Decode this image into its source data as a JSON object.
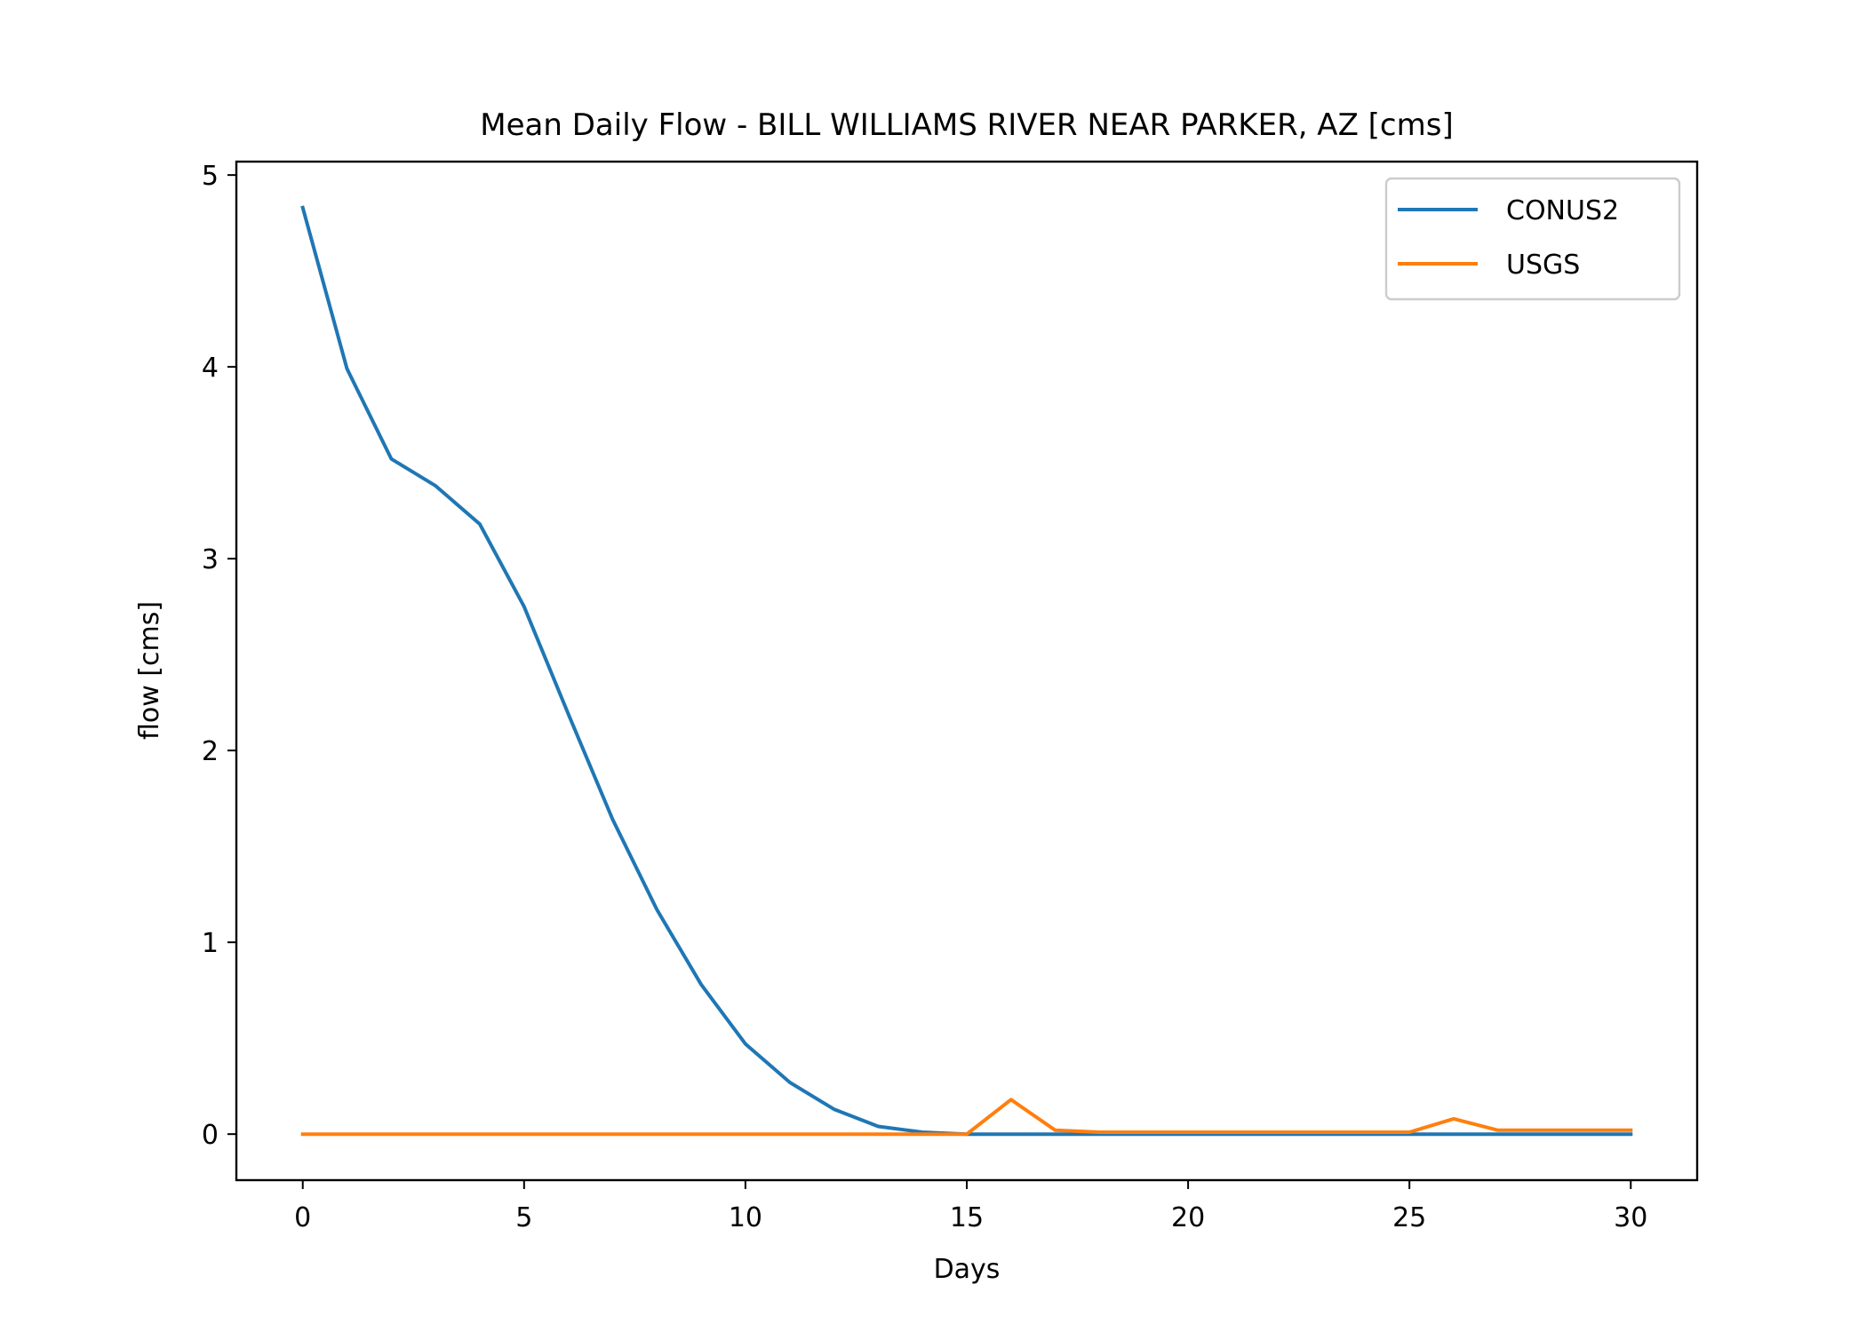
{
  "chart_data": {
    "type": "line",
    "title": "Mean Daily Flow - BILL WILLIAMS RIVER NEAR PARKER, AZ [cms]",
    "xlabel": "Days",
    "ylabel": "flow [cms]",
    "xlim": [
      -1.5,
      31.5
    ],
    "ylim": [
      -0.24,
      5.07
    ],
    "xticks": [
      0,
      5,
      10,
      15,
      20,
      25,
      30
    ],
    "yticks": [
      0,
      1,
      2,
      3,
      4,
      5
    ],
    "grid": false,
    "legend_position": "upper right",
    "x": [
      0,
      1,
      2,
      3,
      4,
      5,
      6,
      7,
      8,
      9,
      10,
      11,
      12,
      13,
      14,
      15,
      16,
      17,
      18,
      19,
      20,
      21,
      22,
      23,
      24,
      25,
      26,
      27,
      28,
      29,
      30
    ],
    "series": [
      {
        "name": "CONUS2",
        "color": "#1f77b4",
        "values": [
          4.83,
          3.99,
          3.52,
          3.38,
          3.18,
          2.75,
          2.19,
          1.64,
          1.17,
          0.78,
          0.47,
          0.27,
          0.13,
          0.04,
          0.01,
          0.0,
          0.0,
          0.0,
          0.0,
          0.0,
          0.0,
          0.0,
          0.0,
          0.0,
          0.0,
          0.0,
          0.0,
          0.0,
          0.0,
          0.0,
          0.0
        ]
      },
      {
        "name": "USGS",
        "color": "#ff7f0e",
        "values": [
          0.0,
          0.0,
          0.0,
          0.0,
          0.0,
          0.0,
          0.0,
          0.0,
          0.0,
          0.0,
          0.0,
          0.0,
          0.0,
          0.0,
          0.0,
          0.0,
          0.18,
          0.02,
          0.01,
          0.01,
          0.01,
          0.01,
          0.01,
          0.01,
          0.01,
          0.01,
          0.08,
          0.02,
          0.02,
          0.02,
          0.02
        ]
      }
    ]
  }
}
